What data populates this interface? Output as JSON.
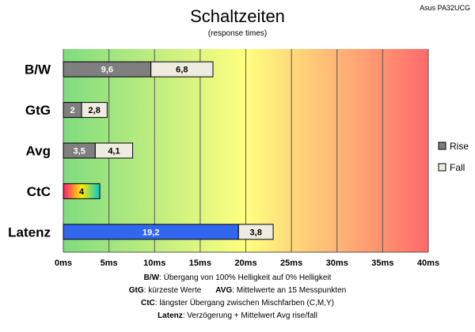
{
  "chart_data": {
    "type": "bar",
    "orientation": "horizontal",
    "stacked": true,
    "title": "Schaltzeiten",
    "subtitle": "(response times)",
    "model": "Asus PA32UCG",
    "categories": [
      "B/W",
      "GtG",
      "Avg",
      "CtC",
      "Latenz"
    ],
    "series": [
      {
        "name": "Rise",
        "values": [
          9.6,
          2,
          3.5,
          4,
          19.2
        ],
        "labels": [
          "9,6",
          "2",
          "3,5",
          "4",
          "19,2"
        ]
      },
      {
        "name": "Fall",
        "values": [
          6.8,
          2.8,
          4.1,
          0,
          3.8
        ],
        "labels": [
          "6,8",
          "2,8",
          "4,1",
          "",
          "3,8"
        ]
      }
    ],
    "xlim": [
      0,
      40
    ],
    "xticks": [
      0,
      5,
      10,
      15,
      20,
      25,
      30,
      35,
      40
    ],
    "xtick_labels": [
      "0ms",
      "5ms",
      "10ms",
      "15ms",
      "20ms",
      "25ms",
      "30ms",
      "35ms",
      "40ms"
    ],
    "grid": true,
    "legend_position": "right",
    "background_gradient": [
      "#7fdc7f",
      "#ffff80",
      "#ff6b6b"
    ],
    "colors": {
      "rise": "#7f7f7f",
      "fall": "#eeece1",
      "latency": "#3366ee",
      "ctc_gradient": [
        "#ff1a6e",
        "#ffee00",
        "#00c8d0"
      ]
    }
  },
  "footnotes": [
    {
      "bold": "B/W",
      "text": ":  Übergang von 100% Helligkeit auf 0% Helligkeit"
    },
    {
      "bold": "GtG",
      "text": ": kürzeste Werte",
      "bold2": "AVG",
      "text2": ": Mittelwerte  an 15 Messpunkten"
    },
    {
      "bold": "CtC",
      "text": ": längster Übergang  zwischen Mischfarben (C,M,Y)"
    },
    {
      "bold": "Latenz",
      "text": ": Verzögerung  + Mittelwert Avg rise/fall"
    }
  ]
}
